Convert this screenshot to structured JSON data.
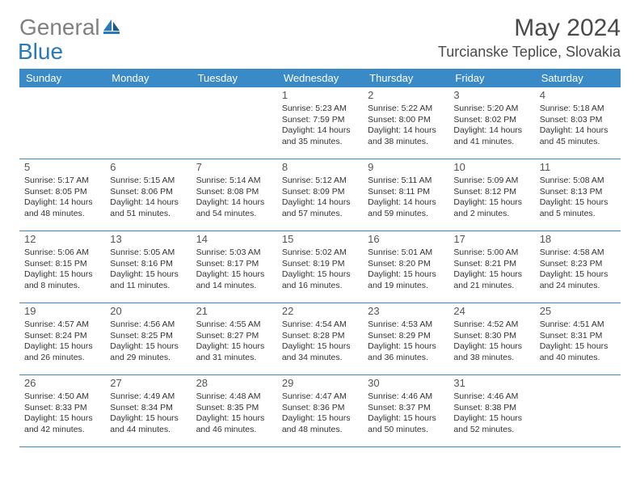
{
  "brand": {
    "general": "General",
    "blue": "Blue"
  },
  "title": "May 2024",
  "location": "Turcianske Teplice, Slovakia",
  "colors": {
    "header_bg": "#3a8ac7",
    "header_text": "#ffffff",
    "divider": "#3a8ac7",
    "logo_gray": "#808080",
    "logo_blue": "#2a7ab8",
    "text": "#333333",
    "background": "#ffffff"
  },
  "day_names": [
    "Sunday",
    "Monday",
    "Tuesday",
    "Wednesday",
    "Thursday",
    "Friday",
    "Saturday"
  ],
  "weeks": [
    [
      null,
      null,
      null,
      {
        "num": "1",
        "sunrise": "5:23 AM",
        "sunset": "7:59 PM",
        "daylight": "14 hours and 35 minutes."
      },
      {
        "num": "2",
        "sunrise": "5:22 AM",
        "sunset": "8:00 PM",
        "daylight": "14 hours and 38 minutes."
      },
      {
        "num": "3",
        "sunrise": "5:20 AM",
        "sunset": "8:02 PM",
        "daylight": "14 hours and 41 minutes."
      },
      {
        "num": "4",
        "sunrise": "5:18 AM",
        "sunset": "8:03 PM",
        "daylight": "14 hours and 45 minutes."
      }
    ],
    [
      {
        "num": "5",
        "sunrise": "5:17 AM",
        "sunset": "8:05 PM",
        "daylight": "14 hours and 48 minutes."
      },
      {
        "num": "6",
        "sunrise": "5:15 AM",
        "sunset": "8:06 PM",
        "daylight": "14 hours and 51 minutes."
      },
      {
        "num": "7",
        "sunrise": "5:14 AM",
        "sunset": "8:08 PM",
        "daylight": "14 hours and 54 minutes."
      },
      {
        "num": "8",
        "sunrise": "5:12 AM",
        "sunset": "8:09 PM",
        "daylight": "14 hours and 57 minutes."
      },
      {
        "num": "9",
        "sunrise": "5:11 AM",
        "sunset": "8:11 PM",
        "daylight": "14 hours and 59 minutes."
      },
      {
        "num": "10",
        "sunrise": "5:09 AM",
        "sunset": "8:12 PM",
        "daylight": "15 hours and 2 minutes."
      },
      {
        "num": "11",
        "sunrise": "5:08 AM",
        "sunset": "8:13 PM",
        "daylight": "15 hours and 5 minutes."
      }
    ],
    [
      {
        "num": "12",
        "sunrise": "5:06 AM",
        "sunset": "8:15 PM",
        "daylight": "15 hours and 8 minutes."
      },
      {
        "num": "13",
        "sunrise": "5:05 AM",
        "sunset": "8:16 PM",
        "daylight": "15 hours and 11 minutes."
      },
      {
        "num": "14",
        "sunrise": "5:03 AM",
        "sunset": "8:17 PM",
        "daylight": "15 hours and 14 minutes."
      },
      {
        "num": "15",
        "sunrise": "5:02 AM",
        "sunset": "8:19 PM",
        "daylight": "15 hours and 16 minutes."
      },
      {
        "num": "16",
        "sunrise": "5:01 AM",
        "sunset": "8:20 PM",
        "daylight": "15 hours and 19 minutes."
      },
      {
        "num": "17",
        "sunrise": "5:00 AM",
        "sunset": "8:21 PM",
        "daylight": "15 hours and 21 minutes."
      },
      {
        "num": "18",
        "sunrise": "4:58 AM",
        "sunset": "8:23 PM",
        "daylight": "15 hours and 24 minutes."
      }
    ],
    [
      {
        "num": "19",
        "sunrise": "4:57 AM",
        "sunset": "8:24 PM",
        "daylight": "15 hours and 26 minutes."
      },
      {
        "num": "20",
        "sunrise": "4:56 AM",
        "sunset": "8:25 PM",
        "daylight": "15 hours and 29 minutes."
      },
      {
        "num": "21",
        "sunrise": "4:55 AM",
        "sunset": "8:27 PM",
        "daylight": "15 hours and 31 minutes."
      },
      {
        "num": "22",
        "sunrise": "4:54 AM",
        "sunset": "8:28 PM",
        "daylight": "15 hours and 34 minutes."
      },
      {
        "num": "23",
        "sunrise": "4:53 AM",
        "sunset": "8:29 PM",
        "daylight": "15 hours and 36 minutes."
      },
      {
        "num": "24",
        "sunrise": "4:52 AM",
        "sunset": "8:30 PM",
        "daylight": "15 hours and 38 minutes."
      },
      {
        "num": "25",
        "sunrise": "4:51 AM",
        "sunset": "8:31 PM",
        "daylight": "15 hours and 40 minutes."
      }
    ],
    [
      {
        "num": "26",
        "sunrise": "4:50 AM",
        "sunset": "8:33 PM",
        "daylight": "15 hours and 42 minutes."
      },
      {
        "num": "27",
        "sunrise": "4:49 AM",
        "sunset": "8:34 PM",
        "daylight": "15 hours and 44 minutes."
      },
      {
        "num": "28",
        "sunrise": "4:48 AM",
        "sunset": "8:35 PM",
        "daylight": "15 hours and 46 minutes."
      },
      {
        "num": "29",
        "sunrise": "4:47 AM",
        "sunset": "8:36 PM",
        "daylight": "15 hours and 48 minutes."
      },
      {
        "num": "30",
        "sunrise": "4:46 AM",
        "sunset": "8:37 PM",
        "daylight": "15 hours and 50 minutes."
      },
      {
        "num": "31",
        "sunrise": "4:46 AM",
        "sunset": "8:38 PM",
        "daylight": "15 hours and 52 minutes."
      },
      null
    ]
  ],
  "labels": {
    "sunrise": "Sunrise: ",
    "sunset": "Sunset: ",
    "daylight": "Daylight: "
  }
}
